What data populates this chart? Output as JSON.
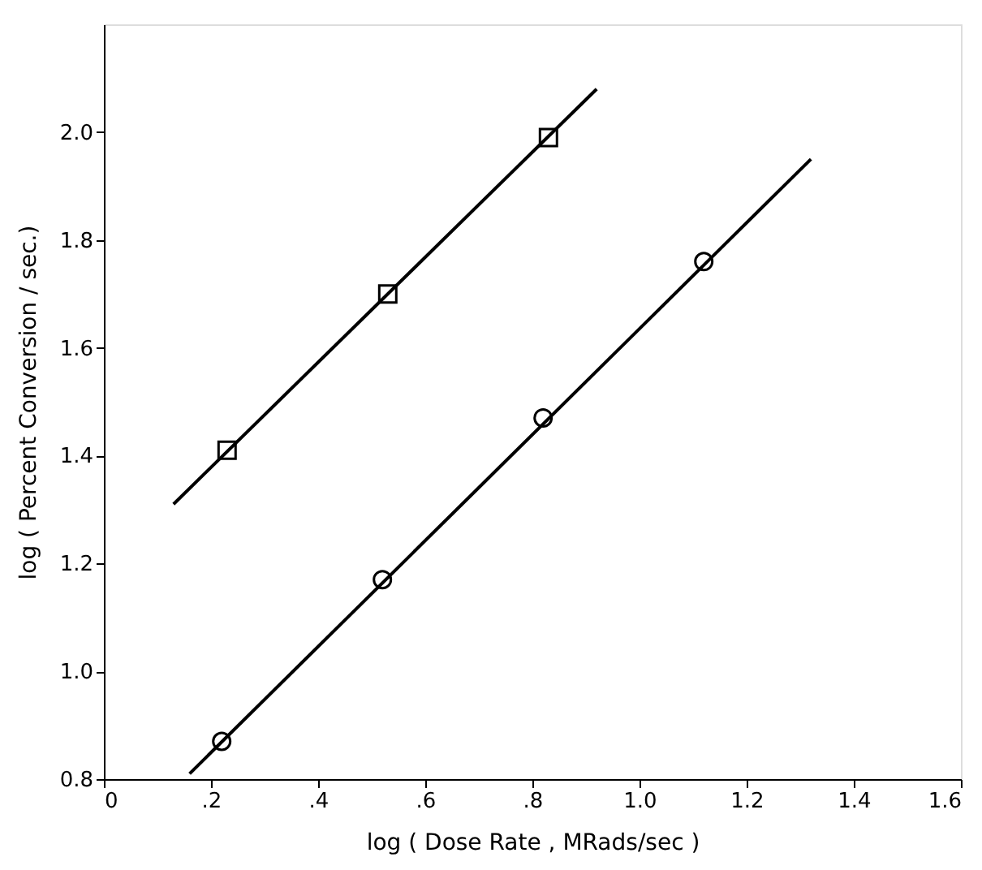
{
  "chart_data": {
    "type": "scatter",
    "xlabel": "log ( Dose Rate , MRads/sec )",
    "ylabel": "log ( Percent Conversion / sec.)",
    "xlim": [
      0,
      1.6
    ],
    "ylim": [
      0.8,
      2.2
    ],
    "xticks": [
      0,
      {
        "value": 0.2,
        "label": ".2"
      },
      {
        "value": 0.4,
        "label": ".4"
      },
      {
        "value": 0.6,
        "label": ".6"
      },
      {
        "value": 0.8,
        "label": ".8"
      },
      {
        "value": 1.0,
        "label": "1.0"
      },
      {
        "value": 1.2,
        "label": "1.2"
      },
      {
        "value": 1.4,
        "label": "1.4"
      },
      {
        "value": 1.6,
        "label": "1.6"
      }
    ],
    "yticks": [
      {
        "value": 0.8,
        "label": "0.8"
      },
      {
        "value": 1.0,
        "label": "1.0"
      },
      {
        "value": 1.2,
        "label": "1.2"
      },
      {
        "value": 1.4,
        "label": "1.4"
      },
      {
        "value": 1.6,
        "label": "1.6"
      },
      {
        "value": 1.8,
        "label": "1.8"
      },
      {
        "value": 2.0,
        "label": "2.0"
      }
    ],
    "grid": false,
    "series": [
      {
        "type": "line",
        "color": "#000000",
        "x": [
          0.13,
          0.92
        ],
        "values": [
          1.31,
          2.08
        ]
      },
      {
        "type": "line",
        "color": "#000000",
        "x": [
          0.16,
          1.32
        ],
        "values": [
          0.81,
          1.95
        ]
      },
      {
        "marker": "square",
        "color": "#000000",
        "x": [
          0.23,
          0.53,
          0.83
        ],
        "values": [
          1.41,
          1.7,
          1.99
        ]
      },
      {
        "marker": "circle",
        "color": "#000000",
        "x": [
          0.22,
          0.52,
          0.82,
          1.12
        ],
        "values": [
          0.87,
          1.17,
          1.47,
          1.76
        ]
      }
    ]
  }
}
